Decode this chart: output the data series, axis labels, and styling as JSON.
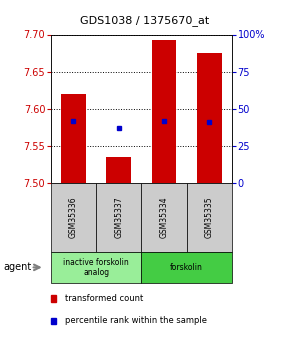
{
  "title": "GDS1038 / 1375670_at",
  "samples": [
    "GSM35336",
    "GSM35337",
    "GSM35334",
    "GSM35335"
  ],
  "bar_bottoms": [
    7.5,
    7.5,
    7.5,
    7.5
  ],
  "bar_tops": [
    7.62,
    7.535,
    7.693,
    7.675
  ],
  "percentile_values": [
    7.584,
    7.574,
    7.584,
    7.582
  ],
  "ylim": [
    7.5,
    7.7
  ],
  "yticks_left": [
    7.5,
    7.55,
    7.6,
    7.65,
    7.7
  ],
  "yticks_right": [
    0,
    25,
    50,
    75,
    100
  ],
  "bar_color": "#cc0000",
  "dot_color": "#0000cc",
  "agent_groups": [
    {
      "label": "inactive forskolin\nanalog",
      "samples": [
        0,
        1
      ],
      "color": "#99ee99"
    },
    {
      "label": "forskolin",
      "samples": [
        2,
        3
      ],
      "color": "#44cc44"
    }
  ],
  "legend_items": [
    {
      "color": "#cc0000",
      "label": "transformed count"
    },
    {
      "color": "#0000cc",
      "label": "percentile rank within the sample"
    }
  ],
  "background_color": "#ffffff",
  "plot_bg": "#ffffff",
  "sample_box_color": "#cccccc"
}
